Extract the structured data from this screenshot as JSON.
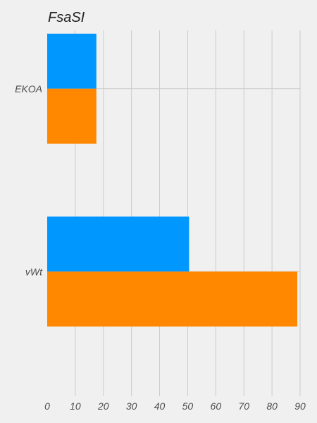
{
  "chart_data": {
    "type": "bar",
    "orientation": "horizontal",
    "title": "FsaSI",
    "categories": [
      "EKOA",
      "vWt"
    ],
    "series": [
      {
        "color": "#008fd5",
        "values": [
          17.5,
          50.5
        ]
      },
      {
        "color": "#fc4f30",
        "values": [
          17.5,
          89
        ]
      }
    ],
    "xlim": [
      0,
      90
    ],
    "xticks": [
      0,
      10,
      20,
      30,
      40,
      50,
      60,
      70,
      80,
      90
    ],
    "grid": true
  }
}
